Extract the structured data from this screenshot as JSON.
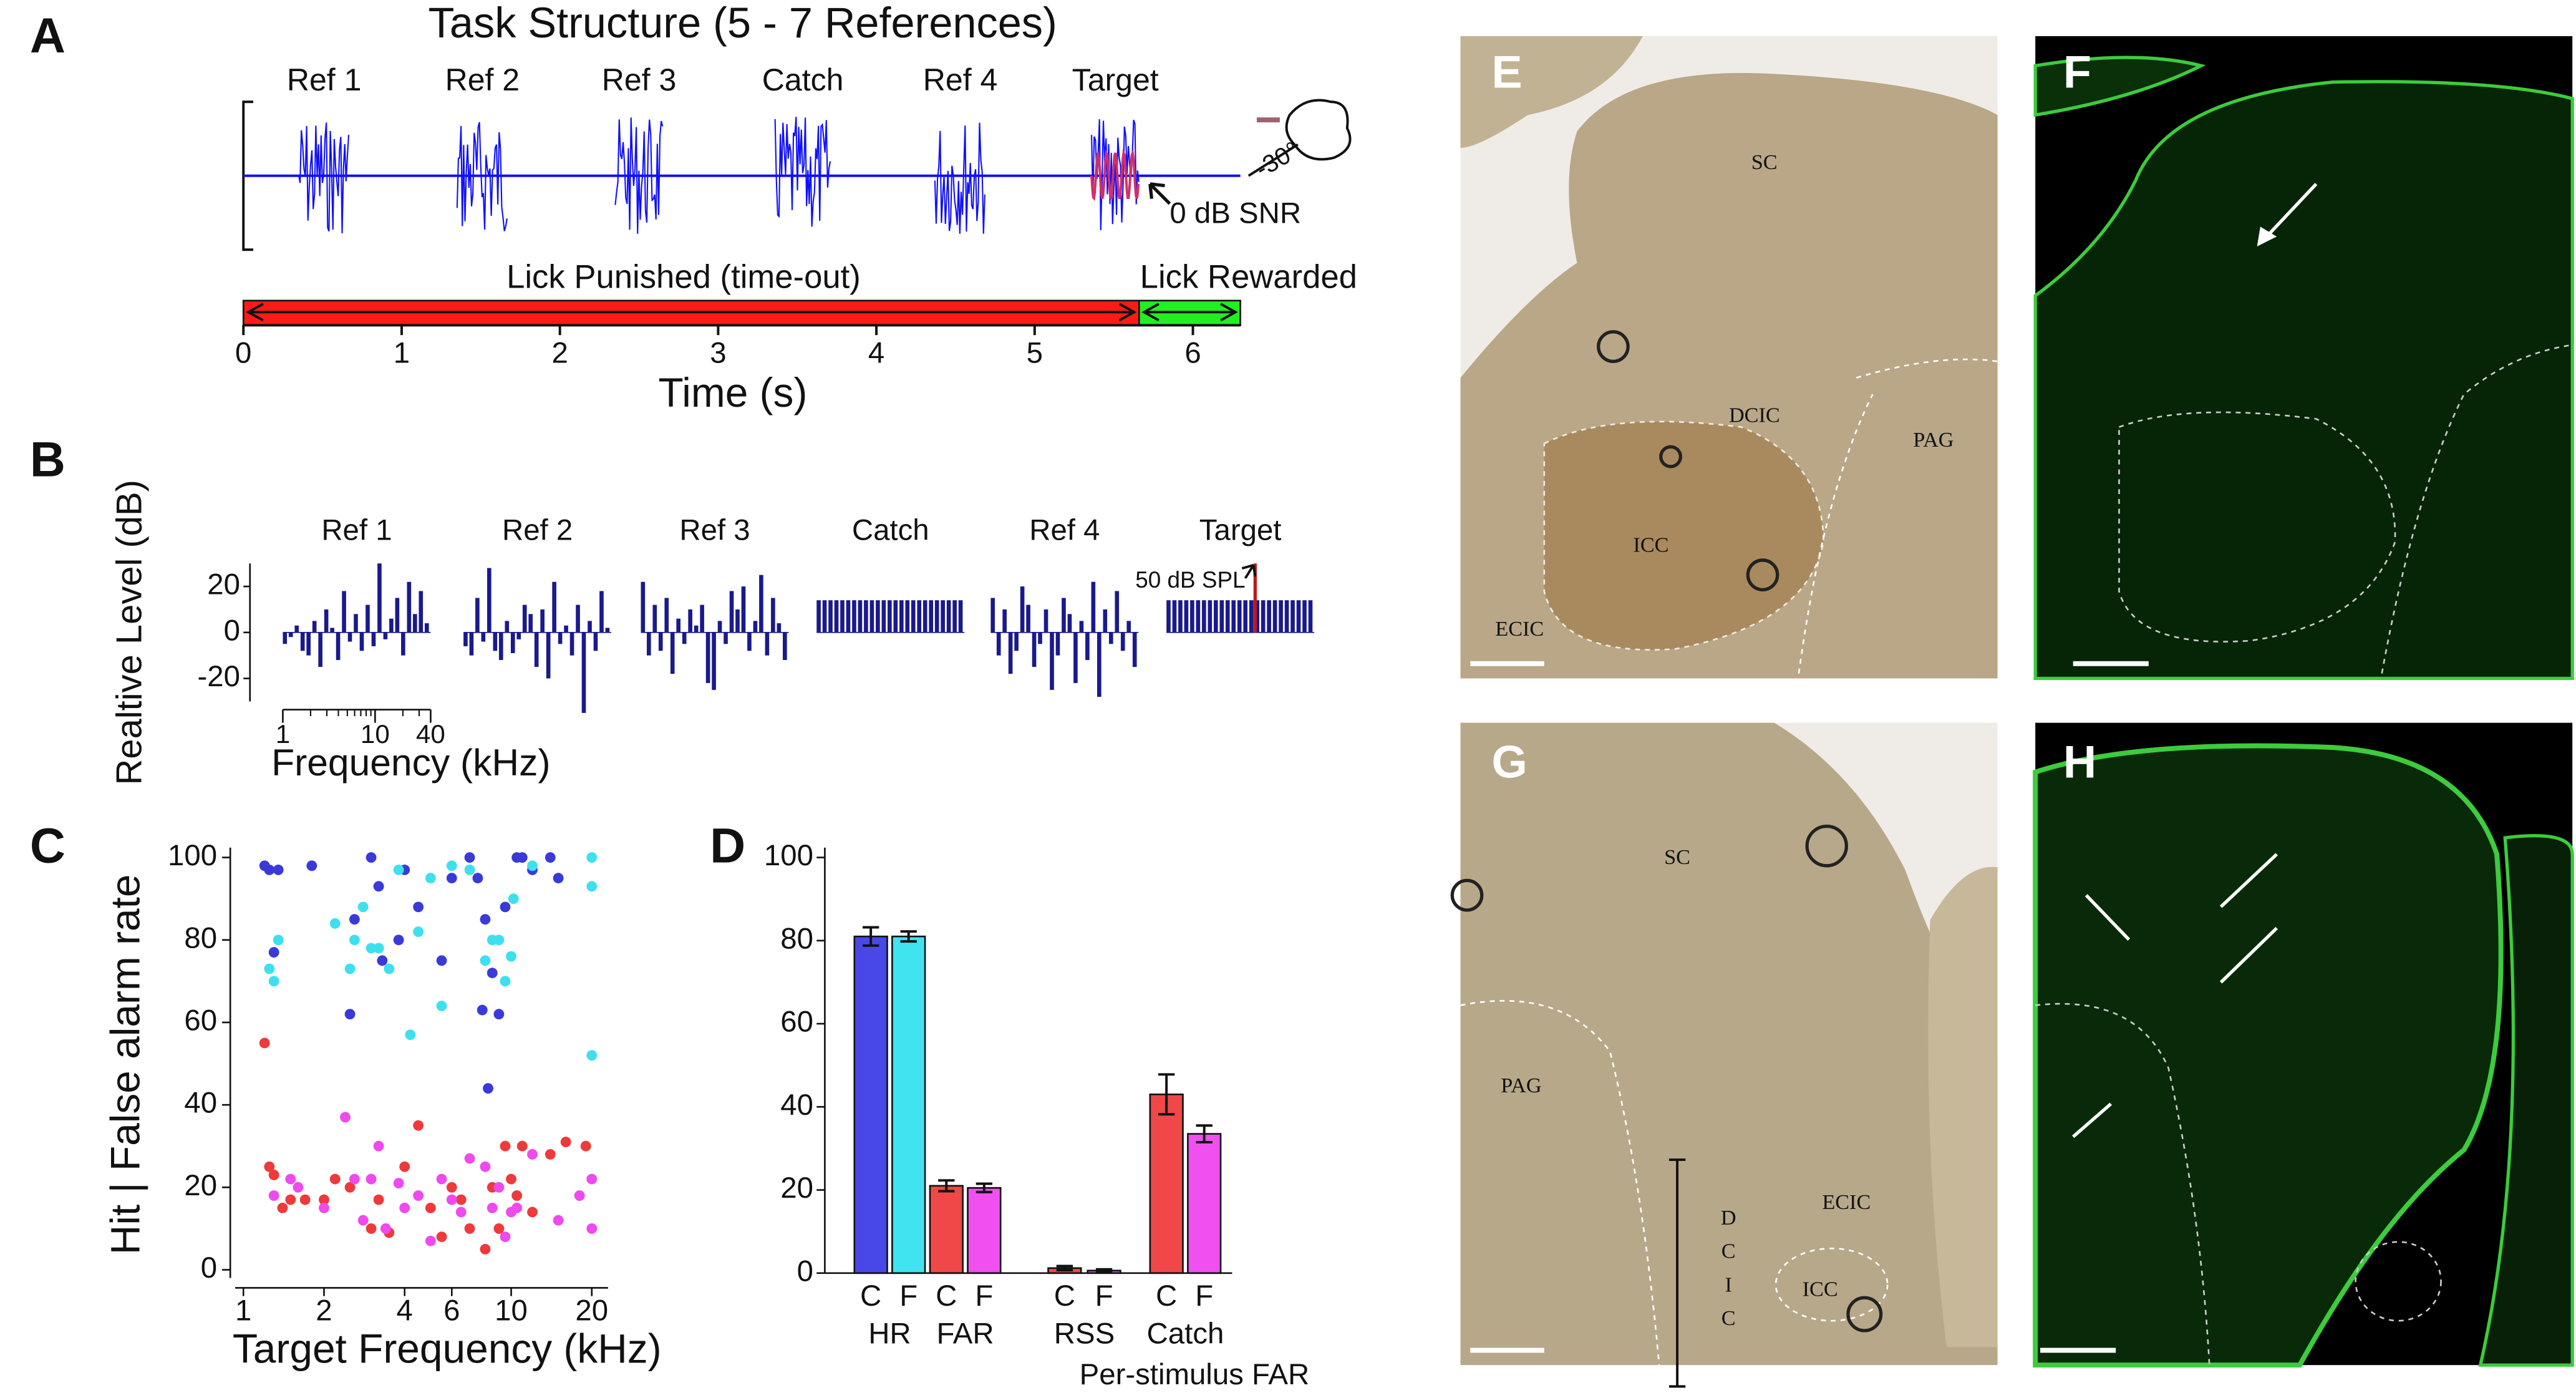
{
  "panel_labels": [
    "A",
    "B",
    "C",
    "D",
    "E",
    "F",
    "G",
    "H"
  ],
  "chart_data": [
    {
      "type": "timeline",
      "title": "Task Structure (5 - 7 References)",
      "stimuli": [
        "Ref 1",
        "Ref 2",
        "Ref 3",
        "Catch",
        "Ref 4",
        "Target"
      ],
      "onsets": [
        0.35,
        1.35,
        2.35,
        3.36,
        4.37,
        5.36
      ],
      "offsets": [
        0.67,
        1.67,
        2.65,
        3.71,
        4.69,
        5.66
      ],
      "color": "#1010ff",
      "target_color": "#d0306a",
      "windows": [
        {
          "label": "Lick Punished (time-out)",
          "start": 0,
          "end": 5.66,
          "color": "#ff1a1a"
        },
        {
          "label": "Lick Rewarded",
          "start": 5.66,
          "end": 6.3,
          "color": "#22ee22"
        }
      ],
      "snr_label": "0 dB SNR",
      "angle_label": "-30°",
      "xlim": [
        0,
        6.3
      ],
      "xticks": [
        0,
        1,
        2,
        3,
        4,
        5,
        6
      ],
      "xlabel": "Time (s)"
    },
    {
      "type": "spectra",
      "ylabel": "Realtive Level (dB)",
      "xlabel": "Frequency (kHz)",
      "ylim": [
        -30,
        30
      ],
      "yticks": [
        20,
        0,
        -20
      ],
      "xlim": [
        1,
        40
      ],
      "xticks": [
        1,
        10,
        40
      ],
      "xscale": "log",
      "color": "#1a1a8c",
      "tone_color": "#c01818",
      "tone_label": "50 dB SPL",
      "panels": [
        {
          "title": "Ref 1",
          "values": [
            -5,
            -2,
            3,
            -8,
            -10,
            5,
            -15,
            10,
            2,
            -12,
            18,
            -4,
            8,
            -8,
            12,
            -6,
            30,
            -3,
            6,
            15,
            -10,
            22,
            8,
            18,
            4
          ]
        },
        {
          "title": "Ref 2",
          "values": [
            -6,
            -10,
            15,
            -4,
            28,
            -8,
            -12,
            5,
            -9,
            -3,
            12,
            8,
            -15,
            10,
            -20,
            22,
            -5,
            3,
            -10,
            12,
            -35,
            5,
            -8,
            18,
            2
          ]
        },
        {
          "title": "Ref 3",
          "values": [
            22,
            -10,
            12,
            -8,
            15,
            -18,
            6,
            -5,
            10,
            3,
            12,
            -22,
            -25,
            5,
            -5,
            18,
            10,
            20,
            -8,
            5,
            25,
            -10,
            15,
            4,
            -12
          ]
        },
        {
          "title": "Catch",
          "values": [
            14,
            14,
            14,
            14,
            14,
            14,
            14,
            14,
            14,
            14,
            14,
            14,
            14,
            14,
            14,
            14,
            14,
            14,
            14,
            14,
            14,
            14,
            14,
            14,
            14
          ]
        },
        {
          "title": "Ref 4",
          "values": [
            15,
            -10,
            10,
            -18,
            -8,
            20,
            12,
            -15,
            -5,
            10,
            -25,
            -10,
            15,
            8,
            -22,
            5,
            -12,
            22,
            -28,
            10,
            -5,
            18,
            -8,
            5,
            -15
          ]
        },
        {
          "title": "Target",
          "values": [
            14,
            14,
            14,
            14,
            14,
            14,
            14,
            14,
            14,
            14,
            14,
            14,
            14,
            14,
            14,
            14,
            14,
            14,
            14,
            14,
            14,
            14,
            14,
            14,
            14
          ],
          "tone": 30
        }
      ]
    },
    {
      "type": "scatter",
      "xlabel": "Target Frequency (kHz)",
      "ylabel": "Hit | False alarm rate",
      "xscale": "log",
      "xlim": [
        1,
        23
      ],
      "xticks": [
        1,
        2,
        4,
        6,
        10,
        20
      ],
      "ylim": [
        0,
        100
      ],
      "yticks": [
        0,
        20,
        40,
        60,
        80,
        100
      ],
      "series": [
        {
          "color": "#3a3ad8",
          "x": [
            1.2,
            1.25,
            1.3,
            1.35,
            1.8,
            2.5,
            2.6,
            3,
            3.2,
            3.3,
            3.8,
            4,
            4.5,
            5.5,
            6,
            7,
            7.5,
            7.8,
            8,
            8.5,
            9,
            9.5,
            10.5,
            11,
            12,
            14,
            15,
            8.2
          ],
          "values": [
            98,
            97,
            77,
            97,
            98,
            62,
            85,
            100,
            93,
            75,
            80,
            97,
            88,
            75,
            95,
            100,
            95,
            63,
            85,
            72,
            62,
            88,
            100,
            100,
            97,
            100,
            95,
            44
          ]
        },
        {
          "color": "#3ee0ee",
          "x": [
            1.25,
            1.3,
            1.35,
            2.2,
            2.5,
            2.6,
            2.8,
            3,
            3.2,
            3.5,
            3.8,
            4.2,
            4.5,
            5,
            5.5,
            6,
            7,
            8,
            8.5,
            9,
            9.5,
            10,
            10.2,
            12,
            20,
            20,
            20
          ],
          "values": [
            73,
            70,
            80,
            84,
            73,
            80,
            88,
            78,
            78,
            73,
            97,
            57,
            82,
            95,
            64,
            98,
            97,
            75,
            80,
            80,
            70,
            76,
            90,
            98,
            100,
            93,
            52
          ]
        },
        {
          "color": "#ee3a3a",
          "x": [
            1.2,
            1.25,
            1.3,
            1.4,
            1.5,
            1.7,
            2,
            2.2,
            2.5,
            3,
            3.2,
            3.5,
            4,
            4.5,
            5,
            5.5,
            6,
            6.5,
            7,
            8,
            9,
            9.5,
            10,
            10.5,
            11,
            12,
            14,
            16,
            19,
            8.5
          ],
          "values": [
            55,
            25,
            23,
            15,
            17,
            17,
            17,
            22,
            20,
            10,
            17,
            9,
            25,
            35,
            15,
            8,
            20,
            17,
            10,
            5,
            10,
            30,
            22,
            18,
            30,
            14,
            28,
            31,
            30,
            20
          ]
        },
        {
          "color": "#ee4aee",
          "x": [
            1.3,
            1.5,
            1.6,
            2,
            2.4,
            2.6,
            2.8,
            3,
            3.2,
            3.4,
            3.8,
            4,
            4.5,
            5,
            5.5,
            6,
            6.5,
            7,
            8,
            8.5,
            9,
            9.5,
            10,
            10.5,
            12,
            15,
            18,
            20,
            20
          ],
          "values": [
            18,
            22,
            20,
            15,
            37,
            22,
            12,
            22,
            30,
            10,
            21,
            15,
            18,
            7,
            22,
            17,
            14,
            27,
            25,
            15,
            20,
            8,
            14,
            15,
            28,
            12,
            18,
            10,
            22
          ]
        }
      ]
    },
    {
      "type": "bar",
      "categories": [
        "C",
        "F",
        "C",
        "F",
        "C",
        "F",
        "C",
        "F"
      ],
      "groups": [
        "HR",
        "FAR",
        "RSS",
        "Catch"
      ],
      "group_label": "Per-stimulus FAR",
      "values": [
        81,
        81,
        21,
        20.5,
        1.2,
        0.6,
        43,
        33.5
      ],
      "errors": [
        2.2,
        1.2,
        1.3,
        1,
        0.5,
        0.3,
        4.8,
        2
      ],
      "colors": [
        "#4848e8",
        "#40e4f0",
        "#f04848",
        "#f050f0",
        "#f04848",
        "#f050f0",
        "#f04848",
        "#f050f0"
      ],
      "ylim": [
        0,
        100
      ],
      "yticks": [
        0,
        20,
        40,
        60,
        80,
        100
      ]
    }
  ],
  "images": {
    "E": [
      "SC",
      "DCIC",
      "PAG",
      "ICC",
      "ECIC"
    ],
    "G": [
      "SC",
      "PAG",
      "ECIC",
      "ICC",
      "DCIC"
    ]
  }
}
